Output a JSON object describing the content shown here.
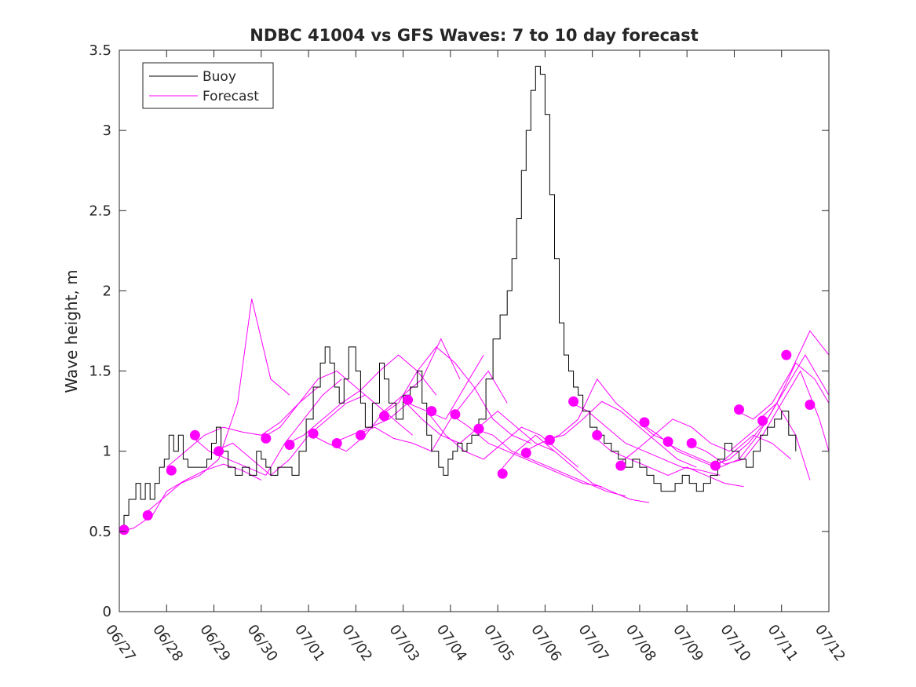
{
  "chart_data": {
    "type": "line",
    "title": "NDBC 41004 vs GFS Waves: 7 to 10 day forecast",
    "xlabel": "",
    "ylabel": "Wave height, m",
    "xlim": [
      "06/27",
      "07/12"
    ],
    "ylim": [
      0,
      3.5
    ],
    "x_ticks": [
      "06/27",
      "06/28",
      "06/29",
      "06/30",
      "07/01",
      "07/02",
      "07/03",
      "07/04",
      "07/05",
      "07/06",
      "07/07",
      "07/08",
      "07/09",
      "07/10",
      "07/11",
      "07/12"
    ],
    "y_ticks": [
      "0",
      "0.5",
      "1",
      "1.5",
      "2",
      "2.5",
      "3",
      "3.5"
    ],
    "grid": false,
    "legend": {
      "position": "top-left",
      "entries": [
        "Buoy",
        "Forecast"
      ]
    },
    "colors": {
      "buoy": "#000000",
      "forecast": "#ff00ff",
      "axes": "#262626"
    },
    "buoy": {
      "name": "Buoy",
      "x": [
        0,
        0.1,
        0.2,
        0.35,
        0.45,
        0.55,
        0.65,
        0.75,
        0.85,
        0.95,
        1.05,
        1.15,
        1.25,
        1.35,
        1.45,
        1.55,
        1.65,
        1.75,
        1.85,
        1.95,
        2.05,
        2.15,
        2.3,
        2.45,
        2.6,
        2.75,
        2.9,
        3.0,
        3.1,
        3.2,
        3.35,
        3.5,
        3.65,
        3.8,
        3.95,
        4.1,
        4.25,
        4.35,
        4.45,
        4.55,
        4.65,
        4.75,
        4.85,
        5.0,
        5.1,
        5.2,
        5.35,
        5.5,
        5.6,
        5.7,
        5.85,
        6.0,
        6.15,
        6.3,
        6.4,
        6.5,
        6.6,
        6.75,
        6.85,
        6.95,
        7.05,
        7.15,
        7.25,
        7.35,
        7.45,
        7.6,
        7.75,
        7.9,
        8.05,
        8.2,
        8.3,
        8.4,
        8.5,
        8.6,
        8.7,
        8.8,
        8.9,
        9.0,
        9.1,
        9.2,
        9.3,
        9.4,
        9.5,
        9.6,
        9.7,
        9.8,
        9.95,
        10.1,
        10.25,
        10.4,
        10.55,
        10.7,
        10.85,
        11.0,
        11.15,
        11.3,
        11.45,
        11.6,
        11.75,
        11.9,
        12.05,
        12.2,
        12.35,
        12.5,
        12.65,
        12.8,
        12.95,
        13.1,
        13.25,
        13.4,
        13.55,
        13.7,
        13.85,
        14.0,
        14.15,
        14.3
      ],
      "y": [
        0.5,
        0.6,
        0.7,
        0.8,
        0.7,
        0.8,
        0.7,
        0.8,
        0.9,
        0.95,
        1.1,
        1.0,
        1.1,
        0.95,
        0.9,
        0.9,
        0.9,
        0.9,
        0.95,
        1.05,
        1.15,
        1.0,
        0.9,
        0.85,
        0.9,
        0.85,
        1.0,
        0.95,
        0.9,
        0.85,
        0.9,
        0.9,
        0.85,
        1.0,
        1.2,
        1.4,
        1.55,
        1.65,
        1.55,
        1.4,
        1.3,
        1.45,
        1.65,
        1.5,
        1.3,
        1.15,
        1.3,
        1.55,
        1.45,
        1.3,
        1.2,
        1.35,
        1.4,
        1.5,
        1.3,
        1.1,
        1.0,
        0.9,
        0.85,
        0.95,
        1.0,
        1.05,
        1.0,
        1.05,
        1.1,
        1.2,
        1.45,
        1.7,
        1.85,
        2.0,
        2.2,
        2.45,
        2.75,
        3.0,
        3.25,
        3.4,
        3.35,
        3.1,
        2.6,
        2.2,
        1.8,
        1.6,
        1.5,
        1.4,
        1.35,
        1.25,
        1.15,
        1.1,
        1.05,
        1.0,
        0.95,
        0.9,
        0.95,
        0.9,
        0.85,
        0.8,
        0.75,
        0.75,
        0.8,
        0.85,
        0.8,
        0.75,
        0.8,
        0.85,
        0.95,
        1.05,
        1.0,
        0.95,
        0.9,
        1.0,
        1.1,
        1.15,
        1.2,
        1.25,
        1.1,
        1.0
      ]
    },
    "forecast": {
      "name": "Forecast",
      "runs": [
        {
          "x": [
            0,
            0.3,
            0.7,
            1.0,
            1.4,
            1.8,
            2.2,
            2.6,
            3.0
          ],
          "y": [
            0.5,
            0.52,
            0.6,
            0.75,
            0.82,
            0.88,
            0.92,
            0.88,
            0.82
          ]
        },
        {
          "x": [
            0.5,
            0.9,
            1.3,
            1.7,
            2.1,
            2.5,
            2.8,
            3.2,
            3.6
          ],
          "y": [
            0.6,
            0.7,
            0.8,
            0.85,
            0.95,
            1.3,
            1.95,
            1.45,
            1.35
          ]
        },
        {
          "x": [
            1.0,
            1.4,
            1.8,
            2.2,
            2.6,
            3.0,
            3.4,
            3.8,
            4.2
          ],
          "y": [
            0.9,
            1.0,
            1.1,
            1.15,
            1.12,
            1.1,
            1.18,
            1.3,
            1.4
          ]
        },
        {
          "x": [
            1.5,
            1.9,
            2.3,
            2.7,
            3.1,
            3.5,
            3.9,
            4.3,
            4.7
          ],
          "y": [
            1.1,
            1.0,
            0.95,
            0.9,
            0.85,
            1.05,
            1.2,
            1.35,
            1.45
          ]
        },
        {
          "x": [
            2.0,
            2.4,
            2.8,
            3.2,
            3.6,
            4.0,
            4.4,
            4.8,
            5.2
          ],
          "y": [
            1.0,
            1.05,
            0.95,
            0.85,
            0.95,
            1.1,
            1.2,
            1.3,
            1.35
          ]
        },
        {
          "x": [
            3.0,
            3.4,
            3.8,
            4.2,
            4.6,
            5.0,
            5.4,
            5.8,
            6.2
          ],
          "y": [
            1.08,
            1.15,
            1.3,
            1.45,
            1.5,
            1.4,
            1.3,
            1.2,
            1.1
          ]
        },
        {
          "x": [
            3.5,
            3.9,
            4.3,
            4.7,
            5.1,
            5.5,
            5.9,
            6.3,
            6.7
          ],
          "y": [
            1.04,
            1.1,
            1.2,
            1.3,
            1.38,
            1.5,
            1.6,
            1.5,
            1.35
          ]
        },
        {
          "x": [
            4.0,
            4.4,
            4.8,
            5.2,
            5.6,
            6.0,
            6.4,
            6.8,
            7.2
          ],
          "y": [
            1.11,
            1.05,
            1.0,
            1.1,
            1.25,
            1.35,
            1.45,
            1.7,
            1.45
          ]
        },
        {
          "x": [
            4.5,
            4.9,
            5.3,
            5.7,
            6.1,
            6.5,
            6.9,
            7.3,
            7.7
          ],
          "y": [
            1.05,
            1.1,
            1.15,
            1.2,
            1.3,
            1.25,
            1.2,
            1.4,
            1.6
          ]
        },
        {
          "x": [
            5.0,
            5.4,
            5.8,
            6.2,
            6.6,
            7.0,
            7.4,
            7.8,
            8.2
          ],
          "y": [
            1.1,
            1.15,
            1.08,
            1.05,
            1.0,
            1.2,
            1.35,
            1.5,
            1.3
          ]
        },
        {
          "x": [
            5.5,
            5.9,
            6.3,
            6.7,
            7.1,
            7.5,
            7.9,
            8.3,
            8.7
          ],
          "y": [
            1.22,
            1.3,
            1.5,
            1.65,
            1.55,
            1.4,
            1.2,
            1.1,
            1.05
          ]
        },
        {
          "x": [
            6.0,
            6.4,
            6.8,
            7.2,
            7.6,
            8.0,
            8.4,
            8.8,
            9.2
          ],
          "y": [
            1.32,
            1.2,
            1.1,
            1.05,
            1.15,
            1.25,
            1.15,
            1.05,
            1.0
          ]
        },
        {
          "x": [
            6.5,
            6.9,
            7.3,
            7.7,
            8.1,
            8.5,
            8.9,
            9.3,
            9.7
          ],
          "y": [
            1.25,
            1.1,
            1.0,
            0.95,
            1.05,
            1.15,
            1.1,
            1.0,
            0.9
          ]
        },
        {
          "x": [
            7.0,
            7.4,
            7.8,
            8.2,
            8.6,
            9.0,
            9.4,
            9.8,
            10.2
          ],
          "y": [
            1.23,
            1.15,
            1.05,
            1.0,
            0.95,
            0.9,
            0.85,
            0.8,
            0.78
          ]
        },
        {
          "x": [
            7.5,
            7.9,
            8.3,
            8.7,
            9.1,
            9.5,
            9.9,
            10.3,
            10.7
          ],
          "y": [
            1.14,
            1.1,
            1.0,
            0.95,
            0.9,
            0.85,
            0.8,
            0.75,
            0.72
          ]
        },
        {
          "x": [
            8.0,
            8.4,
            8.8,
            9.2,
            9.6,
            10.0,
            10.4,
            10.8,
            11.2
          ],
          "y": [
            0.86,
            1.0,
            1.1,
            1.0,
            0.9,
            0.8,
            0.75,
            0.7,
            0.68
          ]
        },
        {
          "x": [
            8.5,
            8.9,
            9.3,
            9.7,
            10.1,
            10.5,
            10.9,
            11.3,
            11.7
          ],
          "y": [
            0.99,
            1.05,
            1.1,
            1.2,
            1.45,
            1.3,
            1.2,
            1.1,
            1.05
          ]
        },
        {
          "x": [
            9.0,
            9.4,
            9.8,
            10.2,
            10.6,
            11.0,
            11.4,
            11.8,
            12.2
          ],
          "y": [
            1.07,
            1.1,
            1.2,
            1.31,
            1.25,
            1.15,
            1.05,
            0.95,
            0.9
          ]
        },
        {
          "x": [
            9.5,
            9.9,
            10.3,
            10.7,
            11.1,
            11.5,
            11.9,
            12.3,
            12.7
          ],
          "y": [
            1.31,
            1.25,
            1.15,
            1.05,
            1.0,
            0.95,
            0.9,
            0.88,
            0.85
          ]
        },
        {
          "x": [
            10.0,
            10.4,
            10.8,
            11.2,
            11.6,
            12.0,
            12.4,
            12.8,
            13.2
          ],
          "y": [
            1.1,
            1.0,
            0.95,
            0.9,
            0.85,
            0.9,
            0.85,
            0.8,
            0.78
          ]
        },
        {
          "x": [
            10.5,
            10.9,
            11.3,
            11.7,
            12.1,
            12.5,
            12.9,
            13.3,
            13.7
          ],
          "y": [
            0.91,
            1.0,
            1.1,
            1.2,
            1.15,
            1.05,
            1.0,
            1.1,
            1.2
          ]
        },
        {
          "x": [
            11.0,
            11.4,
            11.8,
            12.2,
            12.6,
            13.0,
            13.4,
            13.8,
            14.2
          ],
          "y": [
            1.18,
            1.1,
            1.0,
            0.95,
            0.9,
            1.0,
            1.1,
            1.05,
            0.95
          ]
        },
        {
          "x": [
            11.5,
            11.9,
            12.3,
            12.7,
            13.1,
            13.5,
            13.9,
            14.3,
            14.6
          ],
          "y": [
            1.06,
            1.0,
            0.95,
            0.9,
            0.95,
            1.1,
            1.3,
            1.1,
            0.82
          ]
        },
        {
          "x": [
            12.0,
            12.4,
            12.8,
            13.2,
            13.6,
            14.0,
            14.4,
            14.8,
            15.0
          ],
          "y": [
            1.05,
            1.0,
            0.92,
            0.95,
            1.1,
            1.3,
            1.5,
            1.2,
            1.0
          ]
        },
        {
          "x": [
            12.5,
            12.9,
            13.3,
            13.7,
            14.1,
            14.5,
            14.9,
            15.0
          ],
          "y": [
            0.91,
            0.95,
            1.05,
            1.2,
            1.4,
            1.6,
            1.4,
            1.35
          ]
        },
        {
          "x": [
            13.0,
            13.4,
            13.8,
            14.2,
            14.6,
            15.0
          ],
          "y": [
            1.26,
            1.2,
            1.3,
            1.5,
            1.75,
            1.6
          ]
        },
        {
          "x": [
            13.5,
            13.9,
            14.3,
            14.7,
            15.0
          ],
          "y": [
            1.19,
            1.3,
            1.55,
            1.45,
            1.3
          ]
        }
      ],
      "markers": {
        "x": [
          0.1,
          0.6,
          1.1,
          1.6,
          2.1,
          3.1,
          3.6,
          4.1,
          4.6,
          5.1,
          5.6,
          6.1,
          6.6,
          7.1,
          7.6,
          8.1,
          8.6,
          9.1,
          9.6,
          10.1,
          10.6,
          11.1,
          11.6,
          12.1,
          12.6,
          13.1,
          13.6,
          14.1,
          14.6
        ],
        "y": [
          0.51,
          0.6,
          0.88,
          1.1,
          1.0,
          1.08,
          1.04,
          1.11,
          1.05,
          1.1,
          1.22,
          1.32,
          1.25,
          1.23,
          1.14,
          0.86,
          0.99,
          1.07,
          1.31,
          1.1,
          0.91,
          1.18,
          1.06,
          1.05,
          0.91,
          1.26,
          1.19,
          1.6,
          1.29
        ]
      }
    }
  }
}
